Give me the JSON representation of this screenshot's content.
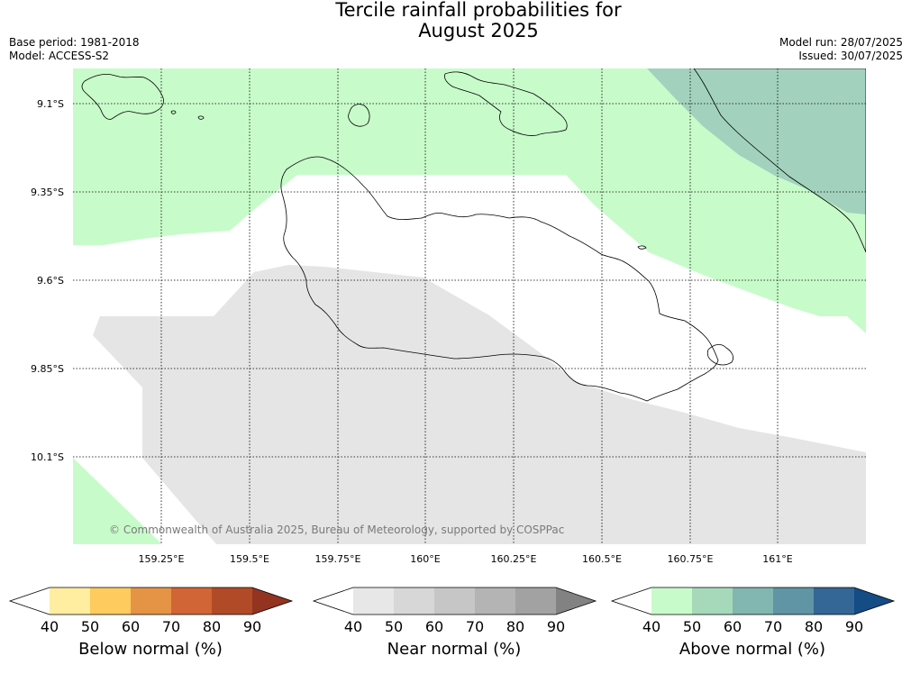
{
  "title_line1": "Tercile rainfall probabilities for",
  "title_line2": "August 2025",
  "base_period": "Base period: 1981-2018",
  "model": "Model: ACCESS-S2",
  "model_run": "Model run: 28/07/2025",
  "issued": "Issued: 30/07/2025",
  "copyright": "© Commonwealth of Australia 2025, Bureau of Meteorology, supported by COSPPac",
  "map": {
    "lat_labels": [
      "9.1°S",
      "9.35°S",
      "9.6°S",
      "9.85°S",
      "10.1°S"
    ],
    "lon_labels": [
      "159.25°E",
      "159.5°E",
      "159.75°E",
      "160°E",
      "160.25°E",
      "160.5°E",
      "160.75°E",
      "161°E"
    ],
    "colors": {
      "above_normal_50": "#c8fbca",
      "above_normal_60": "#a2d2bd",
      "near_normal_50": "#e5e5e5",
      "land_outline": "#000000"
    }
  },
  "colorbars": [
    {
      "title": "Below normal (%)",
      "ticks": [
        "40",
        "50",
        "60",
        "70",
        "80",
        "90"
      ],
      "colors": [
        "#ffffff",
        "#ffeda0",
        "#fecb5e",
        "#e59446",
        "#d16535",
        "#b14b27",
        "#923420"
      ]
    },
    {
      "title": "Near normal (%)",
      "ticks": [
        "40",
        "50",
        "60",
        "70",
        "80",
        "90"
      ],
      "colors": [
        "#ffffff",
        "#e7e7e7",
        "#d7d7d7",
        "#c6c6c6",
        "#b4b4b4",
        "#a2a2a2",
        "#828282"
      ]
    },
    {
      "title": "Above normal (%)",
      "ticks": [
        "40",
        "50",
        "60",
        "70",
        "80",
        "90"
      ],
      "colors": [
        "#ffffff",
        "#c8fbca",
        "#a5d9ba",
        "#81b7b0",
        "#5f95a4",
        "#346696",
        "#144c86"
      ]
    }
  ]
}
